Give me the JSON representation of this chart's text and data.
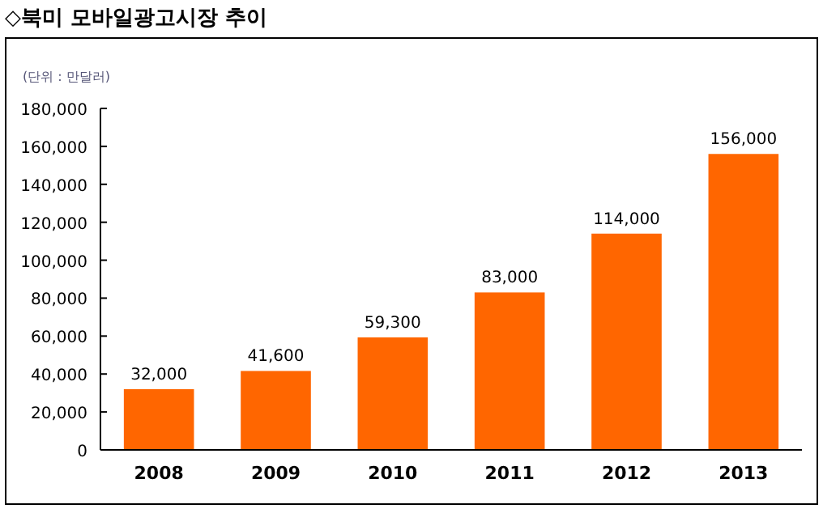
{
  "chart_data": {
    "type": "bar",
    "title": "◇북미 모바일광고시장 추이",
    "ylabel": "(단위 : 만달러)",
    "categories": [
      "2008",
      "2009",
      "2010",
      "2011",
      "2012",
      "2013"
    ],
    "values": [
      32000,
      41600,
      59300,
      83000,
      114000,
      156000
    ],
    "value_labels": [
      "32,000",
      "41,600",
      "59,300",
      "83,000",
      "114,000",
      "156,000"
    ],
    "color": "#ff6600",
    "ylim": [
      0,
      180000
    ],
    "yticks": [
      {
        "value": 0,
        "label": "0"
      },
      {
        "value": 20000,
        "label": "20,000"
      },
      {
        "value": 40000,
        "label": "40,000"
      },
      {
        "value": 60000,
        "label": "60,000"
      },
      {
        "value": 80000,
        "label": "80,000"
      },
      {
        "value": 100000,
        "label": "100,000"
      },
      {
        "value": 120000,
        "label": "120,000"
      },
      {
        "value": 140000,
        "label": "140,000"
      },
      {
        "value": 160000,
        "label": "160,000"
      },
      {
        "value": 180000,
        "label": "180,000"
      }
    ],
    "grid": false
  }
}
